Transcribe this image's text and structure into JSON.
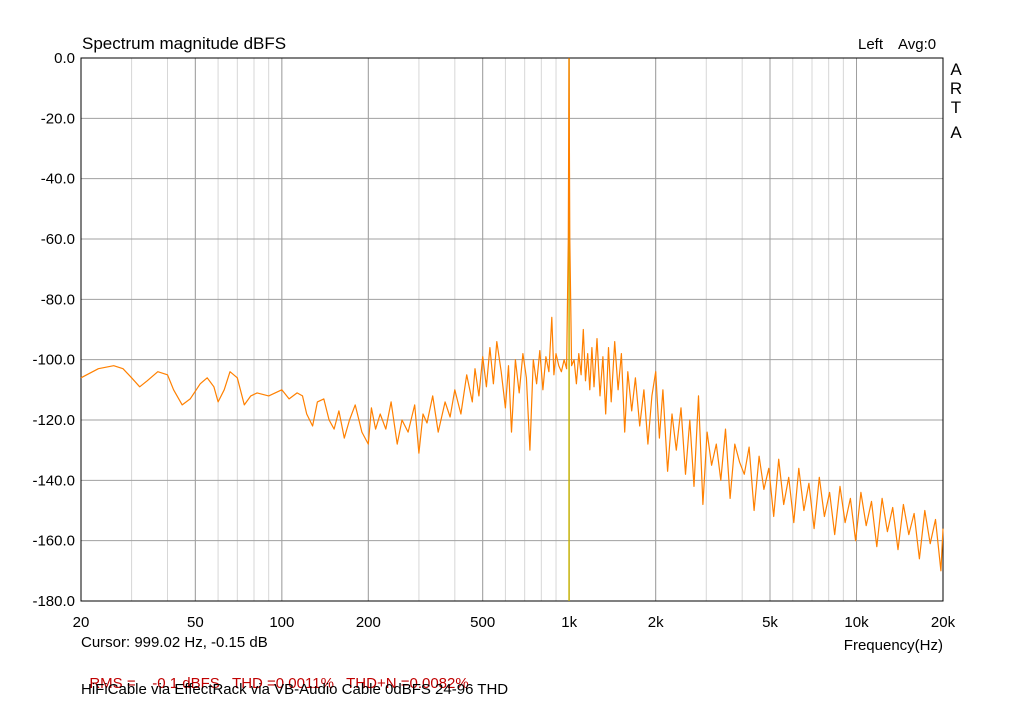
{
  "colors": {
    "trace": "#ff8000",
    "marker": "#c8b400",
    "grid_major": "#a0a0a0",
    "grid_minor": "#d7d7d7",
    "stats_text": "#c00000",
    "axis": "#000000"
  },
  "header": {
    "title": "Spectrum magnitude dBFS",
    "channel": "Left",
    "avg": "Avg:0",
    "brand_letters": [
      "A",
      "R",
      "T",
      "A"
    ]
  },
  "footer": {
    "cursor": "Cursor: 999.02 Hz, -0.15 dB",
    "rms_label": "RMS =",
    "rms_value": "-0.1 dBFS",
    "thd": "THD =0.0011%",
    "thdn": "THD+N =0.0082%",
    "description": "HiFiCable via EffectRack via VB-Audio Cable 0dBFS 24-96 THD"
  },
  "chart_data": {
    "type": "line",
    "title": "Spectrum magnitude dBFS",
    "xlabel": "Frequency(Hz)",
    "ylabel": "",
    "x_scale": "log",
    "xlim": [
      20,
      20000
    ],
    "ylim": [
      -180,
      0
    ],
    "grid": true,
    "x_ticks": [
      {
        "value": 20,
        "label": "20"
      },
      {
        "value": 50,
        "label": "50"
      },
      {
        "value": 100,
        "label": "100"
      },
      {
        "value": 200,
        "label": "200"
      },
      {
        "value": 500,
        "label": "500"
      },
      {
        "value": 1000,
        "label": "1k"
      },
      {
        "value": 2000,
        "label": "2k"
      },
      {
        "value": 5000,
        "label": "5k"
      },
      {
        "value": 10000,
        "label": "10k"
      },
      {
        "value": 20000,
        "label": "20k"
      }
    ],
    "y_ticks": [
      {
        "value": 0,
        "label": "0.0"
      },
      {
        "value": -20,
        "label": "-20.0"
      },
      {
        "value": -40,
        "label": "-40.0"
      },
      {
        "value": -60,
        "label": "-60.0"
      },
      {
        "value": -80,
        "label": "-80.0"
      },
      {
        "value": -100,
        "label": "-100.0"
      },
      {
        "value": -120,
        "label": "-120.0"
      },
      {
        "value": -140,
        "label": "-140.0"
      },
      {
        "value": -160,
        "label": "-160.0"
      },
      {
        "value": -180,
        "label": "-180.0"
      }
    ],
    "cursor_marker": {
      "x": 999.02,
      "y": -0.15
    },
    "series": [
      {
        "points": [
          [
            20,
            -106
          ],
          [
            23,
            -103
          ],
          [
            26,
            -102
          ],
          [
            28,
            -103
          ],
          [
            30,
            -106
          ],
          [
            32,
            -109
          ],
          [
            34,
            -107
          ],
          [
            37,
            -104
          ],
          [
            40,
            -105
          ],
          [
            42,
            -110
          ],
          [
            45,
            -115
          ],
          [
            48,
            -113
          ],
          [
            52,
            -108
          ],
          [
            55,
            -106
          ],
          [
            58,
            -109
          ],
          [
            60,
            -114
          ],
          [
            63,
            -110
          ],
          [
            66,
            -104
          ],
          [
            70,
            -106
          ],
          [
            74,
            -115
          ],
          [
            78,
            -112
          ],
          [
            82,
            -111
          ],
          [
            90,
            -112
          ],
          [
            100,
            -110
          ],
          [
            106,
            -113
          ],
          [
            113,
            -111
          ],
          [
            118,
            -112
          ],
          [
            122,
            -118
          ],
          [
            128,
            -122
          ],
          [
            133,
            -114
          ],
          [
            140,
            -113
          ],
          [
            146,
            -120
          ],
          [
            152,
            -123
          ],
          [
            158,
            -117
          ],
          [
            165,
            -126
          ],
          [
            172,
            -120
          ],
          [
            180,
            -115
          ],
          [
            190,
            -124
          ],
          [
            200,
            -128
          ],
          [
            205,
            -116
          ],
          [
            212,
            -123
          ],
          [
            220,
            -118
          ],
          [
            230,
            -123
          ],
          [
            240,
            -114
          ],
          [
            252,
            -128
          ],
          [
            262,
            -120
          ],
          [
            275,
            -124
          ],
          [
            290,
            -115
          ],
          [
            300,
            -131
          ],
          [
            310,
            -118
          ],
          [
            320,
            -121
          ],
          [
            335,
            -112
          ],
          [
            350,
            -124
          ],
          [
            370,
            -114
          ],
          [
            385,
            -119
          ],
          [
            400,
            -110
          ],
          [
            420,
            -118
          ],
          [
            440,
            -105
          ],
          [
            460,
            -114
          ],
          [
            470,
            -103
          ],
          [
            485,
            -112
          ],
          [
            500,
            -99
          ],
          [
            515,
            -109
          ],
          [
            530,
            -96
          ],
          [
            545,
            -108
          ],
          [
            560,
            -94
          ],
          [
            580,
            -104
          ],
          [
            600,
            -116
          ],
          [
            615,
            -102
          ],
          [
            630,
            -124
          ],
          [
            650,
            -100
          ],
          [
            670,
            -111
          ],
          [
            690,
            -98
          ],
          [
            710,
            -106
          ],
          [
            730,
            -130
          ],
          [
            750,
            -100
          ],
          [
            770,
            -108
          ],
          [
            790,
            -97
          ],
          [
            810,
            -110
          ],
          [
            830,
            -99
          ],
          [
            850,
            -104
          ],
          [
            870,
            -86
          ],
          [
            885,
            -105
          ],
          [
            900,
            -98
          ],
          [
            920,
            -102
          ],
          [
            940,
            -104
          ],
          [
            960,
            -100
          ],
          [
            980,
            -103
          ],
          [
            993,
            -60
          ],
          [
            999,
            -0.15
          ],
          [
            1005,
            -60
          ],
          [
            1020,
            -102
          ],
          [
            1040,
            -100
          ],
          [
            1060,
            -108
          ],
          [
            1080,
            -98
          ],
          [
            1100,
            -105
          ],
          [
            1120,
            -90
          ],
          [
            1140,
            -107
          ],
          [
            1160,
            -98
          ],
          [
            1180,
            -110
          ],
          [
            1200,
            -96
          ],
          [
            1220,
            -109
          ],
          [
            1250,
            -93
          ],
          [
            1280,
            -112
          ],
          [
            1310,
            -99
          ],
          [
            1340,
            -118
          ],
          [
            1370,
            -96
          ],
          [
            1400,
            -114
          ],
          [
            1440,
            -94
          ],
          [
            1480,
            -110
          ],
          [
            1520,
            -98
          ],
          [
            1560,
            -124
          ],
          [
            1600,
            -104
          ],
          [
            1650,
            -117
          ],
          [
            1700,
            -106
          ],
          [
            1760,
            -122
          ],
          [
            1820,
            -110
          ],
          [
            1880,
            -128
          ],
          [
            1940,
            -112
          ],
          [
            2000,
            -104
          ],
          [
            2060,
            -126
          ],
          [
            2120,
            -110
          ],
          [
            2200,
            -137
          ],
          [
            2280,
            -118
          ],
          [
            2360,
            -130
          ],
          [
            2450,
            -116
          ],
          [
            2540,
            -138
          ],
          [
            2630,
            -120
          ],
          [
            2720,
            -142
          ],
          [
            2820,
            -112
          ],
          [
            2920,
            -148
          ],
          [
            3020,
            -124
          ],
          [
            3130,
            -135
          ],
          [
            3250,
            -128
          ],
          [
            3370,
            -140
          ],
          [
            3500,
            -123
          ],
          [
            3630,
            -146
          ],
          [
            3770,
            -128
          ],
          [
            3920,
            -134
          ],
          [
            4070,
            -138
          ],
          [
            4230,
            -129
          ],
          [
            4400,
            -150
          ],
          [
            4580,
            -132
          ],
          [
            4760,
            -143
          ],
          [
            4950,
            -136
          ],
          [
            5150,
            -152
          ],
          [
            5360,
            -133
          ],
          [
            5580,
            -148
          ],
          [
            5810,
            -139
          ],
          [
            6050,
            -154
          ],
          [
            6300,
            -136
          ],
          [
            6560,
            -150
          ],
          [
            6830,
            -141
          ],
          [
            7120,
            -156
          ],
          [
            7420,
            -139
          ],
          [
            7730,
            -152
          ],
          [
            8060,
            -144
          ],
          [
            8400,
            -158
          ],
          [
            8760,
            -142
          ],
          [
            9130,
            -154
          ],
          [
            9520,
            -146
          ],
          [
            9930,
            -160
          ],
          [
            10360,
            -144
          ],
          [
            10810,
            -155
          ],
          [
            11280,
            -147
          ],
          [
            11770,
            -162
          ],
          [
            12280,
            -146
          ],
          [
            12810,
            -157
          ],
          [
            13370,
            -149
          ],
          [
            13950,
            -163
          ],
          [
            14560,
            -148
          ],
          [
            15200,
            -158
          ],
          [
            15870,
            -151
          ],
          [
            16560,
            -166
          ],
          [
            17290,
            -150
          ],
          [
            18050,
            -161
          ],
          [
            18840,
            -153
          ],
          [
            19660,
            -170
          ],
          [
            20000,
            -156
          ]
        ]
      }
    ]
  }
}
